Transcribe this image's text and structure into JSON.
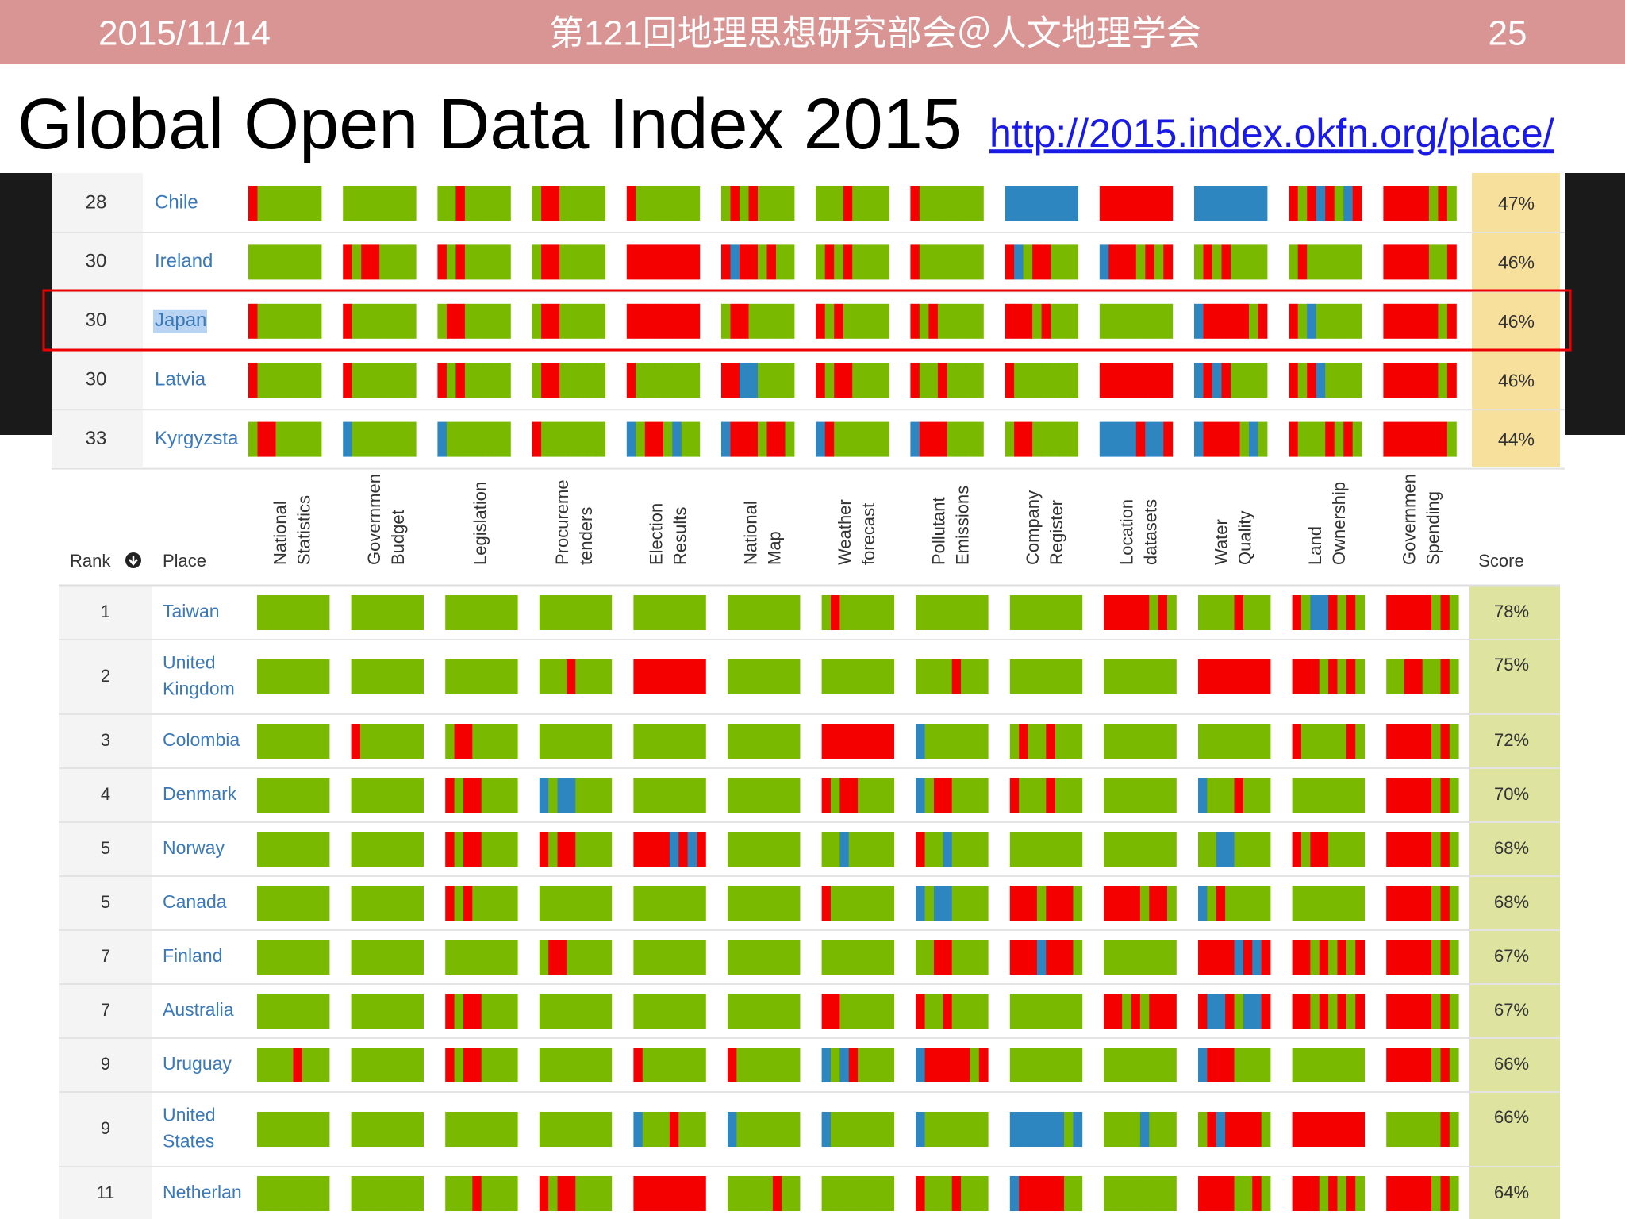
{
  "header": {
    "date": "2015/11/14",
    "title": "第121回地理思想研究部会＠人文地理学会",
    "page": "25"
  },
  "heading": {
    "title": "Global Open Data Index 2015",
    "url": "http://2015.index.okfn.org/place/"
  },
  "top_table": {
    "rows": [
      {
        "rank": "28",
        "place": "Chile",
        "score": "47%"
      },
      {
        "rank": "30",
        "place": "Ireland",
        "score": "46%"
      },
      {
        "rank": "30",
        "place": "Japan",
        "score": "46%"
      },
      {
        "rank": "30",
        "place": "Latvia",
        "score": "46%"
      },
      {
        "rank": "33",
        "place": "Kyrgyzsta",
        "score": "44%"
      }
    ]
  },
  "table": {
    "headers": {
      "rank": "Rank",
      "place": "Place",
      "score": "Score",
      "columns": [
        [
          "National",
          "Statistics"
        ],
        [
          "Governmen",
          "Budget"
        ],
        [
          "Legislation"
        ],
        [
          "Procureme",
          "tenders"
        ],
        [
          "Election",
          "Results"
        ],
        [
          "National",
          "Map"
        ],
        [
          "Weather",
          "forecast"
        ],
        [
          "Pollutant",
          "Emissions"
        ],
        [
          "Company",
          "Register"
        ],
        [
          "Location",
          "datasets"
        ],
        [
          "Water",
          "Quality"
        ],
        [
          "Land",
          "Ownership"
        ],
        [
          "Governmen",
          "Spending"
        ]
      ]
    },
    "rows": [
      {
        "rank": "1",
        "place": [
          "Taiwan"
        ],
        "score": "78%"
      },
      {
        "rank": "2",
        "place": [
          "United",
          "Kingdom"
        ],
        "score": "75%"
      },
      {
        "rank": "3",
        "place": [
          "Colombia"
        ],
        "score": "72%"
      },
      {
        "rank": "4",
        "place": [
          "Denmark"
        ],
        "score": "70%"
      },
      {
        "rank": "5",
        "place": [
          "Norway"
        ],
        "score": "68%"
      },
      {
        "rank": "5",
        "place": [
          "Canada"
        ],
        "score": "68%"
      },
      {
        "rank": "7",
        "place": [
          "Finland"
        ],
        "score": "67%"
      },
      {
        "rank": "7",
        "place": [
          "Australia"
        ],
        "score": "67%"
      },
      {
        "rank": "9",
        "place": [
          "Uruguay"
        ],
        "score": "66%"
      },
      {
        "rank": "9",
        "place": [
          "United",
          "States"
        ],
        "score": "66%"
      },
      {
        "rank": "11",
        "place": [
          "Netherlan"
        ],
        "score": "64%"
      }
    ]
  }
}
